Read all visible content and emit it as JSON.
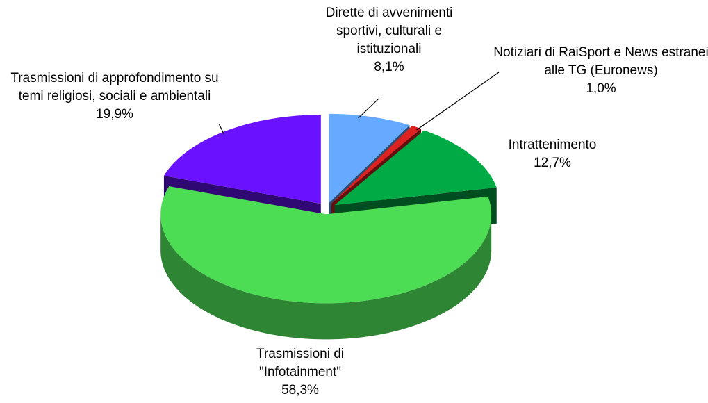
{
  "chart_data": {
    "type": "pie3d",
    "categories": [
      "Dirette di avvenimenti sportivi, culturali e istituzionali",
      "Notiziari di RaiSport e News estranei alle TG (Euronews)",
      "Intrattenimento",
      "Trasmissioni di \"Infotainment\"",
      "Trasmissioni di approfondimento su temi religiosi, sociali e ambientali"
    ],
    "values": [
      8.1,
      1.0,
      12.7,
      58.3,
      19.9
    ],
    "value_labels": [
      "8,1%",
      "1,0%",
      "12,7%",
      "58,3%",
      "19,9%"
    ],
    "colors": [
      "#66aaff",
      "#dd2222",
      "#00aa44",
      "#4ddd55",
      "#6a11ff"
    ]
  }
}
